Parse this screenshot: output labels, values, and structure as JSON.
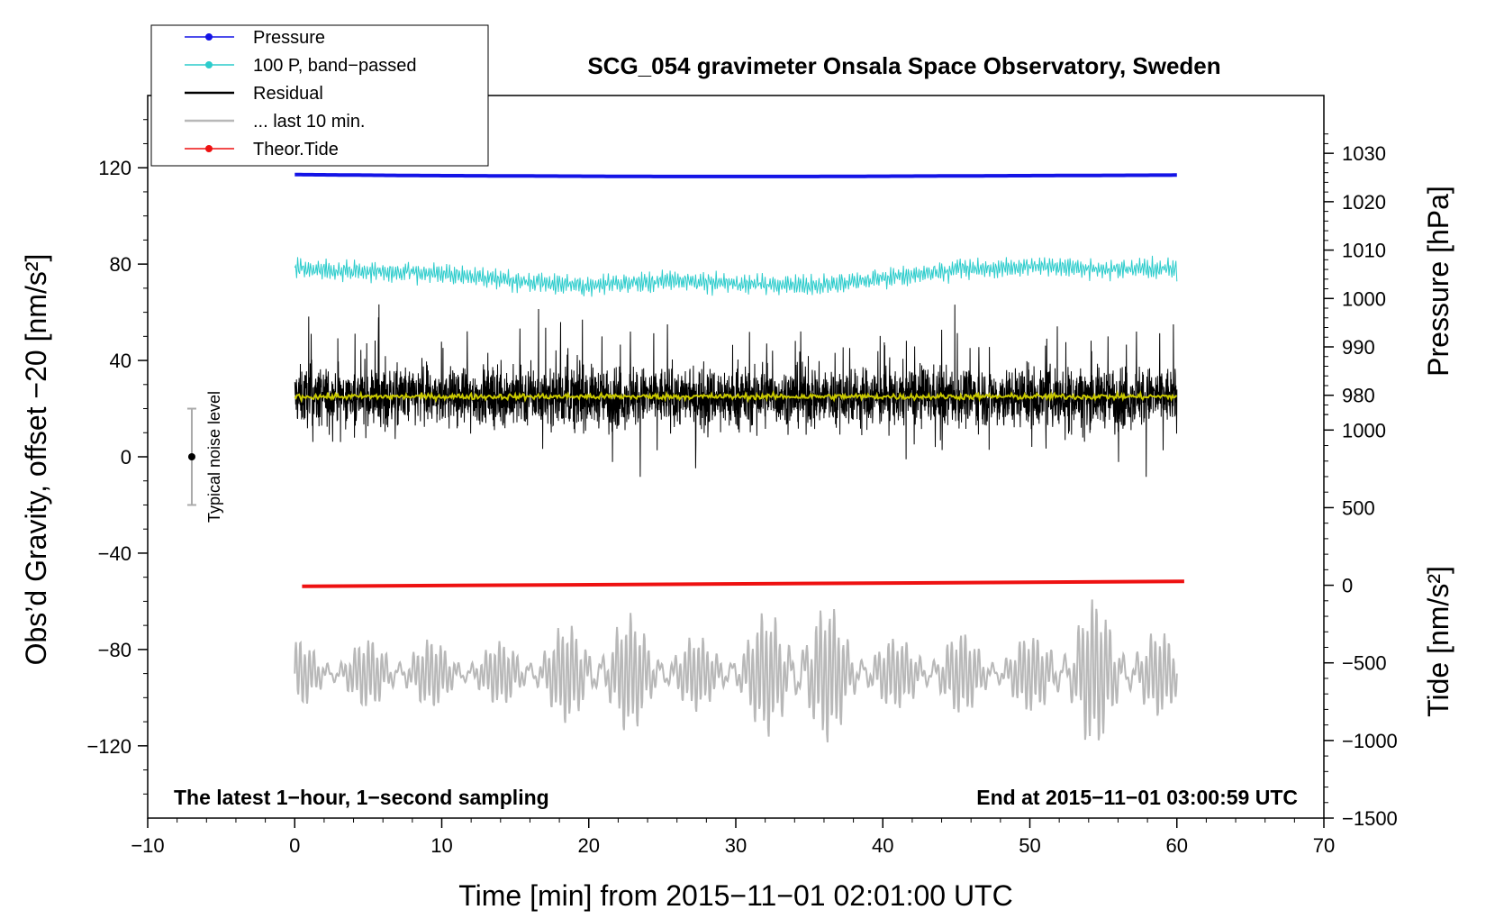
{
  "chart_data": {
    "type": "line",
    "title": "SCG_054 gravimeter Onsala Space Observatory, Sweden",
    "xlabel": "Time [min] from 2015−11−01 02:01:00 UTC",
    "ylabel_left": "Obs’d Gravity, offset −20 [nm/s²]",
    "ylabel_right_pressure": "Pressure [hPa]",
    "ylabel_right_tide": "Tide [nm/s²]",
    "xlim": [
      -10,
      70
    ],
    "ylim_left": [
      -150,
      150
    ],
    "x_ticks": [
      -10,
      0,
      10,
      20,
      30,
      40,
      50,
      60,
      70
    ],
    "x_tick_labels": [
      "−10",
      "0",
      "10",
      "20",
      "30",
      "40",
      "50",
      "60",
      "70"
    ],
    "y_left_ticks": [
      -120,
      -80,
      -40,
      0,
      40,
      80,
      120
    ],
    "y_left_tick_labels": [
      "−120",
      "−80",
      "−40",
      "0",
      "40",
      "80",
      "120"
    ],
    "pressure_axis": {
      "range_on_left_axis": [
        15.5,
        126
      ],
      "value_range": [
        975,
        1030
      ],
      "ticks": [
        980,
        990,
        1000,
        1010,
        1020,
        1030
      ],
      "tick_labels": [
        "980",
        "990",
        "1000",
        "1010",
        "1020",
        "1030"
      ]
    },
    "tide_axis": {
      "range_on_left_axis": [
        -150,
        24
      ],
      "value_range": [
        -1500,
        1200
      ],
      "ticks": [
        -1500,
        -1000,
        -500,
        0,
        500,
        1000
      ],
      "tick_labels": [
        "−1500",
        "−1000",
        "−500",
        "0",
        "500",
        "1000"
      ]
    },
    "legend": [
      {
        "label": "Pressure",
        "color": "#1414e6",
        "style": "line-dot"
      },
      {
        "label": "100 P, band−passed",
        "color": "#2ccccc",
        "style": "line-dot"
      },
      {
        "label": "Residual",
        "color": "#000000",
        "style": "line"
      },
      {
        "label": "... last 10 min.",
        "color": "#b8b8b8",
        "style": "line"
      },
      {
        "label": "Theor.Tide",
        "color": "#ee1111",
        "style": "line-dot"
      }
    ],
    "legend_position": "top-left",
    "series": [
      {
        "name": "Pressure",
        "axis": "pressure",
        "x_range": [
          0,
          60
        ],
        "values_hPa": [
          1025.6,
          1025.4,
          1025.3,
          1025.2,
          1025.2,
          1025.3,
          1025.4,
          1025.5
        ],
        "color": "#1414e6"
      },
      {
        "name": "100 P, band−passed",
        "axis": "left",
        "x_range": [
          0,
          60
        ],
        "baseline": [
          78,
          77,
          76,
          73,
          71,
          73,
          72,
          71,
          74,
          78,
          79,
          78,
          78
        ],
        "amplitude": 4,
        "color": "#2ccccc"
      },
      {
        "name": "Residual",
        "axis": "left",
        "x_range": [
          0,
          60
        ],
        "mean": 25,
        "range": [
          -13,
          66
        ],
        "color": "#000000"
      },
      {
        "name": "Residual smoothed",
        "axis": "left",
        "x_range": [
          0,
          60
        ],
        "values": [
          25,
          25,
          25,
          25,
          25,
          25,
          25
        ],
        "color": "#c8c800"
      },
      {
        "name": "Theor.Tide",
        "axis": "tide",
        "x_range": [
          0.5,
          60.5
        ],
        "values_nm_s2": [
          -7,
          25
        ],
        "color": "#ee1111"
      },
      {
        "name": "... last 10 min.",
        "axis": "left",
        "x_range": [
          0,
          60
        ],
        "center": -90,
        "amplitude_envelope": [
          12,
          10,
          14,
          12,
          10,
          13,
          18,
          22,
          15,
          12,
          20,
          30,
          18,
          12,
          16,
          12,
          14,
          28,
          20,
          12
        ],
        "color": "#b8b8b8"
      }
    ],
    "noise_level": {
      "label": "Typical noise level",
      "x": -7,
      "y": 0,
      "error": 20
    },
    "annotations": {
      "bottom_left": "The latest 1−hour, 1−second sampling",
      "bottom_right": "End at 2015−11−01 03:00:59 UTC"
    }
  }
}
